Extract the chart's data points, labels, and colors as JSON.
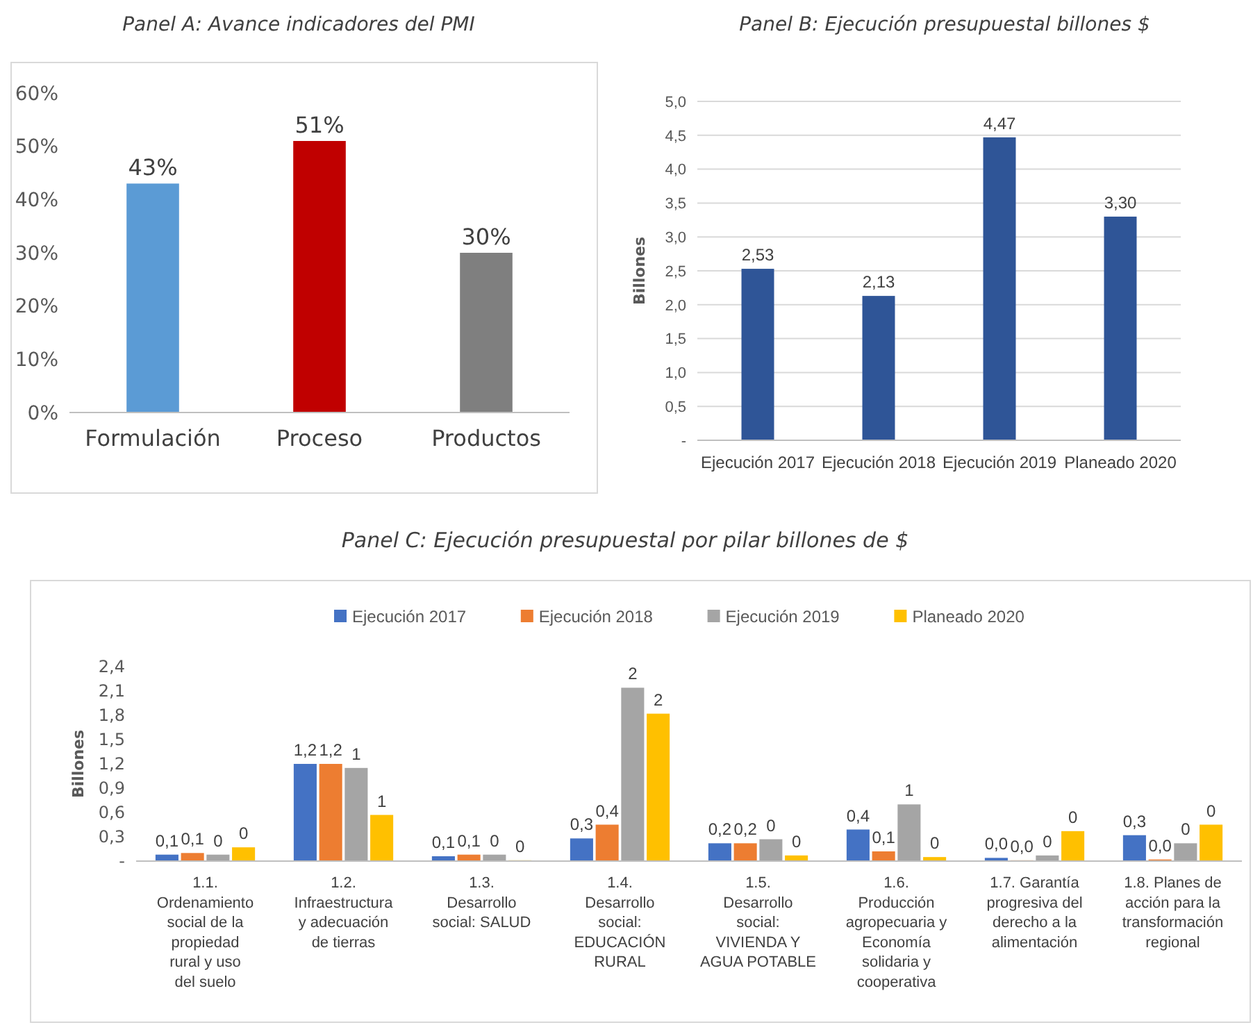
{
  "chart_data": [
    {
      "type": "bar",
      "title": "Panel A: Avance indicadores del PMI",
      "categories": [
        "Formulación",
        "Proceso",
        "Productos"
      ],
      "values": [
        43,
        51,
        30
      ],
      "colors": [
        "#5b9bd5",
        "#c00000",
        "#7f7f7f"
      ],
      "value_labels": [
        "43%",
        "51%",
        "30%"
      ],
      "ylim": [
        0,
        60
      ],
      "yticks": [
        {
          "value": 0,
          "label": "0%"
        },
        {
          "value": 10,
          "label": "10%"
        },
        {
          "value": 20,
          "label": "20%"
        },
        {
          "value": 30,
          "label": "30%"
        },
        {
          "value": 40,
          "label": "40%"
        },
        {
          "value": 50,
          "label": "50%"
        },
        {
          "value": 60,
          "label": "60%"
        }
      ],
      "grid": false,
      "legend": false
    },
    {
      "type": "bar",
      "title": "Panel B: Ejecución presupuestal billones $",
      "ylabel": "Billones",
      "categories": [
        "Ejecución 2017",
        "Ejecución 2018",
        "Ejecución 2019",
        "Planeado 2020"
      ],
      "values": [
        2.53,
        2.13,
        4.47,
        3.3
      ],
      "color": "#2f5597",
      "value_labels": [
        "2,53",
        "2,13",
        "4,47",
        "3,30"
      ],
      "ylim": [
        0,
        5
      ],
      "yticks": [
        {
          "value": 0,
          "label": "-"
        },
        {
          "value": 0.5,
          "label": "0,5"
        },
        {
          "value": 1,
          "label": "1,0"
        },
        {
          "value": 1.5,
          "label": "1,5"
        },
        {
          "value": 2,
          "label": "2,0"
        },
        {
          "value": 2.5,
          "label": "2,5"
        },
        {
          "value": 3,
          "label": "3,0"
        },
        {
          "value": 3.5,
          "label": "3,5"
        },
        {
          "value": 4,
          "label": "4,0"
        },
        {
          "value": 4.5,
          "label": "4,5"
        },
        {
          "value": 5,
          "label": "5,0"
        }
      ],
      "grid": "y",
      "legend": false
    },
    {
      "type": "bar",
      "title": "Panel C: Ejecución presupuestal por pilar billones de $",
      "ylabel": "Billones",
      "categories": [
        "1.1. Ordenamiento social de la propiedad rural y uso del suelo",
        "1.2. Infraestructura y adecuación de tierras",
        "1.3. Desarrollo social: SALUD",
        "1.4. Desarrollo social: EDUCACIÓN RURAL",
        "1.5. Desarrollo social: VIVIENDA Y AGUA POTABLE",
        "1.6. Producción agropecuaria y Economía solidaria y cooperativa",
        "1.7. Garantía progresiva del derecho a la alimentación",
        "1.8. Planes de acción para la transformación regional"
      ],
      "series": [
        {
          "name": "Ejecución 2017",
          "color": "#4472c4",
          "values": [
            0.08,
            1.2,
            0.06,
            0.28,
            0.22,
            0.39,
            0.04,
            0.32
          ],
          "value_labels": [
            "0,1",
            "1,2",
            "0,1",
            "0,3",
            "0,2",
            "0,4",
            "0,0",
            "0,3"
          ]
        },
        {
          "name": "Ejecución 2018",
          "color": "#ed7d31",
          "values": [
            0.1,
            1.2,
            0.08,
            0.45,
            0.22,
            0.12,
            0.01,
            0.02
          ],
          "value_labels": [
            "0,1",
            "1,2",
            "0,1",
            "0,4",
            "0,2",
            "0,1",
            "0,0",
            "0,0"
          ]
        },
        {
          "name": "Ejecución 2019",
          "color": "#a5a5a5",
          "values": [
            0.08,
            1.15,
            0.08,
            2.14,
            0.27,
            0.7,
            0.07,
            0.22
          ],
          "value_labels": [
            "0",
            "1",
            "0",
            "2",
            "0",
            "1",
            "0",
            "0"
          ]
        },
        {
          "name": "Planeado 2020",
          "color": "#ffc000",
          "values": [
            0.17,
            0.57,
            0.01,
            1.82,
            0.07,
            0.05,
            0.37,
            0.45
          ],
          "value_labels": [
            "0",
            "1",
            "0",
            "2",
            "0",
            "0",
            "0",
            "0"
          ]
        }
      ],
      "ylim": [
        0,
        2.4
      ],
      "yticks": [
        {
          "value": 0,
          "label": "-"
        },
        {
          "value": 0.3,
          "label": "0,3"
        },
        {
          "value": 0.6,
          "label": "0,6"
        },
        {
          "value": 0.9,
          "label": "0,9"
        },
        {
          "value": 1.2,
          "label": "1,2"
        },
        {
          "value": 1.5,
          "label": "1,5"
        },
        {
          "value": 1.8,
          "label": "1,8"
        },
        {
          "value": 2.1,
          "label": "2,1"
        },
        {
          "value": 2.4,
          "label": "2,4"
        }
      ],
      "grid": false,
      "legend": "top"
    }
  ]
}
